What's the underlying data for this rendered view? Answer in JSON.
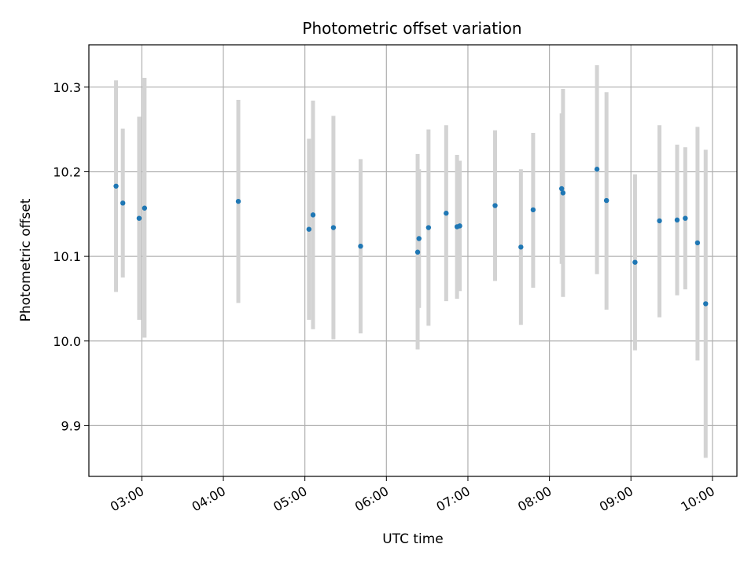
{
  "chart_data": {
    "type": "scatter",
    "title": "Photometric offset variation",
    "xlabel": "UTC time",
    "ylabel": "Photometric offset",
    "xlim": [
      "02:21",
      "10:18"
    ],
    "ylim": [
      9.84,
      10.35
    ],
    "xticks": [
      "03:00",
      "04:00",
      "05:00",
      "06:00",
      "07:00",
      "08:00",
      "09:00",
      "10:00"
    ],
    "yticks": [
      9.9,
      10.0,
      10.1,
      10.2,
      10.3
    ],
    "grid": true,
    "legend": "none",
    "marker_color": "#1f77b4",
    "errorbar_color": "#d3d3d3",
    "points": [
      {
        "x": "02:41",
        "y": 10.183,
        "low": 10.058,
        "high": 10.308
      },
      {
        "x": "02:46",
        "y": 10.163,
        "low": 10.075,
        "high": 10.251
      },
      {
        "x": "02:58",
        "y": 10.145,
        "low": 10.025,
        "high": 10.265
      },
      {
        "x": "03:02",
        "y": 10.157,
        "low": 10.004,
        "high": 10.311
      },
      {
        "x": "04:11",
        "y": 10.165,
        "low": 10.045,
        "high": 10.285
      },
      {
        "x": "05:03",
        "y": 10.132,
        "low": 10.025,
        "high": 10.239
      },
      {
        "x": "05:06",
        "y": 10.149,
        "low": 10.014,
        "high": 10.284
      },
      {
        "x": "05:21",
        "y": 10.134,
        "low": 10.002,
        "high": 10.266
      },
      {
        "x": "05:41",
        "y": 10.112,
        "low": 10.009,
        "high": 10.215
      },
      {
        "x": "06:23",
        "y": 10.105,
        "low": 9.99,
        "high": 10.221
      },
      {
        "x": "06:24",
        "y": 10.121,
        "low": 10.039,
        "high": 10.203
      },
      {
        "x": "06:31",
        "y": 10.134,
        "low": 10.018,
        "high": 10.25
      },
      {
        "x": "06:44",
        "y": 10.151,
        "low": 10.047,
        "high": 10.255
      },
      {
        "x": "06:52",
        "y": 10.135,
        "low": 10.05,
        "high": 10.22
      },
      {
        "x": "06:54",
        "y": 10.136,
        "low": 10.059,
        "high": 10.213
      },
      {
        "x": "07:20",
        "y": 10.16,
        "low": 10.071,
        "high": 10.249
      },
      {
        "x": "07:39",
        "y": 10.111,
        "low": 10.019,
        "high": 10.203
      },
      {
        "x": "07:48",
        "y": 10.155,
        "low": 10.063,
        "high": 10.246
      },
      {
        "x": "08:09",
        "y": 10.18,
        "low": 10.091,
        "high": 10.269
      },
      {
        "x": "08:10",
        "y": 10.175,
        "low": 10.052,
        "high": 10.298
      },
      {
        "x": "08:35",
        "y": 10.203,
        "low": 10.079,
        "high": 10.326
      },
      {
        "x": "08:42",
        "y": 10.166,
        "low": 10.037,
        "high": 10.294
      },
      {
        "x": "09:03",
        "y": 10.093,
        "low": 9.989,
        "high": 10.197
      },
      {
        "x": "09:21",
        "y": 10.142,
        "low": 10.028,
        "high": 10.255
      },
      {
        "x": "09:34",
        "y": 10.143,
        "low": 10.054,
        "high": 10.232
      },
      {
        "x": "09:40",
        "y": 10.145,
        "low": 10.061,
        "high": 10.229
      },
      {
        "x": "09:49",
        "y": 10.116,
        "low": 9.977,
        "high": 10.253
      },
      {
        "x": "09:55",
        "y": 10.044,
        "low": 9.862,
        "high": 10.226
      }
    ]
  }
}
